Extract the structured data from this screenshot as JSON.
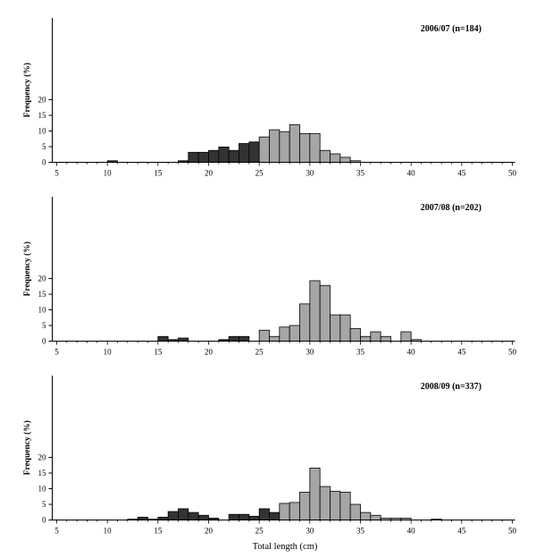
{
  "figure": {
    "xlabel": "Total length (cm)",
    "ylabel": "Frequency (%)"
  },
  "colors": {
    "dark_bar": "#333333",
    "light_bar": "#a6a6a6",
    "outline": "#000000"
  },
  "chart_data": [
    {
      "type": "bar",
      "title": "2006/07 (n=184)",
      "xlim": [
        5,
        50
      ],
      "ylim": [
        0,
        20
      ],
      "xticks": [
        5,
        10,
        15,
        20,
        25,
        30,
        35,
        40,
        45,
        50
      ],
      "yticks": [
        0,
        5,
        10,
        15,
        20
      ],
      "bin_width": 1,
      "series": [
        {
          "fill": "dark",
          "bins": [
            [
              10.5,
              0.5
            ],
            [
              17.5,
              0.5
            ],
            [
              18.5,
              3.2
            ],
            [
              19.5,
              3.2
            ],
            [
              20.5,
              3.8
            ],
            [
              21.5,
              4.9
            ],
            [
              22.5,
              3.8
            ],
            [
              23.5,
              6.0
            ],
            [
              24.5,
              6.5
            ]
          ]
        },
        {
          "fill": "light",
          "bins": [
            [
              25.5,
              8.1
            ],
            [
              26.5,
              10.4
            ],
            [
              27.5,
              9.8
            ],
            [
              28.5,
              12.0
            ],
            [
              29.5,
              9.2
            ],
            [
              30.5,
              9.2
            ],
            [
              31.5,
              3.8
            ],
            [
              32.5,
              2.7
            ],
            [
              33.5,
              1.6
            ],
            [
              34.5,
              0.5
            ]
          ]
        }
      ]
    },
    {
      "type": "bar",
      "title": "2007/08 (n=202)",
      "xlim": [
        5,
        50
      ],
      "ylim": [
        0,
        20
      ],
      "xticks": [
        5,
        10,
        15,
        20,
        25,
        30,
        35,
        40,
        45,
        50
      ],
      "yticks": [
        0,
        5,
        10,
        15,
        20
      ],
      "bin_width": 1,
      "series": [
        {
          "fill": "dark",
          "bins": [
            [
              15.5,
              1.5
            ],
            [
              16.5,
              0.5
            ],
            [
              17.5,
              1.0
            ],
            [
              21.5,
              0.5
            ],
            [
              22.5,
              1.5
            ],
            [
              23.5,
              1.5
            ]
          ]
        },
        {
          "fill": "light",
          "bins": [
            [
              25.5,
              3.5
            ],
            [
              26.5,
              1.5
            ],
            [
              27.5,
              4.5
            ],
            [
              28.5,
              5.0
            ],
            [
              29.5,
              11.9
            ],
            [
              30.5,
              19.3
            ],
            [
              31.5,
              17.8
            ],
            [
              32.5,
              8.4
            ],
            [
              33.5,
              8.4
            ],
            [
              34.5,
              4.0
            ],
            [
              35.5,
              1.5
            ],
            [
              36.5,
              3.0
            ],
            [
              37.5,
              1.5
            ],
            [
              39.5,
              3.0
            ],
            [
              40.5,
              0.5
            ]
          ]
        }
      ]
    },
    {
      "type": "bar",
      "title": "2008/09 (n=337)",
      "xlim": [
        5,
        50
      ],
      "ylim": [
        0,
        20
      ],
      "xticks": [
        5,
        10,
        15,
        20,
        25,
        30,
        35,
        40,
        45,
        50
      ],
      "yticks": [
        0,
        5,
        10,
        15,
        20
      ],
      "bin_width": 1,
      "series": [
        {
          "fill": "dark",
          "bins": [
            [
              12.5,
              0.3
            ],
            [
              13.5,
              0.9
            ],
            [
              14.5,
              0.3
            ],
            [
              15.5,
              0.9
            ],
            [
              16.5,
              2.7
            ],
            [
              17.5,
              3.6
            ],
            [
              18.5,
              2.4
            ],
            [
              19.5,
              1.5
            ],
            [
              20.5,
              0.6
            ],
            [
              22.5,
              1.8
            ],
            [
              23.5,
              1.8
            ],
            [
              24.5,
              1.2
            ],
            [
              25.5,
              3.6
            ],
            [
              26.5,
              2.4
            ]
          ]
        },
        {
          "fill": "light",
          "bins": [
            [
              27.5,
              5.3
            ],
            [
              28.5,
              5.6
            ],
            [
              29.5,
              8.9
            ],
            [
              30.5,
              16.6
            ],
            [
              31.5,
              10.7
            ],
            [
              32.5,
              9.2
            ],
            [
              33.5,
              8.9
            ],
            [
              34.5,
              5.0
            ],
            [
              35.5,
              2.4
            ],
            [
              36.5,
              1.5
            ],
            [
              37.5,
              0.6
            ],
            [
              38.5,
              0.6
            ],
            [
              39.5,
              0.6
            ],
            [
              42.5,
              0.3
            ]
          ]
        }
      ]
    }
  ]
}
